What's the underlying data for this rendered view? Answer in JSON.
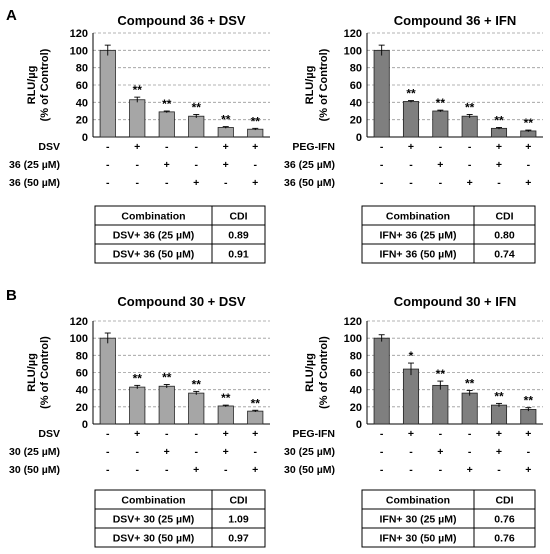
{
  "panel_labels": [
    "A",
    "B"
  ],
  "chart_data": [
    {
      "type": "bar",
      "title": "Compound 36 + DSV",
      "ylabel": "RLU/µg",
      "ylabel2": "(% of Control)",
      "ylim": [
        0,
        120
      ],
      "yticks": [
        "0",
        "20",
        "40",
        "60",
        "80",
        "100",
        "120"
      ],
      "values": [
        100,
        43,
        29,
        24,
        11,
        9
      ],
      "errors": [
        6,
        3,
        1,
        2,
        1,
        1
      ],
      "significance": [
        "",
        "**",
        "**",
        "**",
        "**",
        "**"
      ],
      "bar_color": "#a6a6a6",
      "grid": true,
      "conditions": [
        {
          "label": "DSV",
          "marks": [
            "-",
            "+",
            "-",
            "-",
            "+",
            "+"
          ]
        },
        {
          "label": "36 (25 µM)",
          "marks": [
            "-",
            "-",
            "+",
            "-",
            "+",
            "-"
          ]
        },
        {
          "label": "36 (50 µM)",
          "marks": [
            "-",
            "-",
            "-",
            "+",
            "-",
            "+"
          ]
        }
      ],
      "table": {
        "headers": [
          "Combination",
          "CDI"
        ],
        "rows": [
          [
            "DSV+ 36 (25 µM)",
            "0.89"
          ],
          [
            "DSV+ 36 (50 µM)",
            "0.91"
          ]
        ]
      }
    },
    {
      "type": "bar",
      "title": "Compound 36 + IFN",
      "ylabel": "RLU/µg",
      "ylabel2": "(% of Control)",
      "ylim": [
        0,
        120
      ],
      "yticks": [
        "0",
        "20",
        "40",
        "60",
        "80",
        "100",
        "120"
      ],
      "values": [
        100,
        41,
        30,
        24,
        10,
        7
      ],
      "errors": [
        6,
        1,
        1,
        2,
        1,
        1
      ],
      "significance": [
        "",
        "**",
        "**",
        "**",
        "**",
        "**"
      ],
      "bar_color": "#7f7f7f",
      "grid": true,
      "conditions": [
        {
          "label": "PEG-IFN",
          "marks": [
            "-",
            "+",
            "-",
            "-",
            "+",
            "+"
          ]
        },
        {
          "label": "36 (25 µM)",
          "marks": [
            "-",
            "-",
            "+",
            "-",
            "+",
            "-"
          ]
        },
        {
          "label": "36 (50 µM)",
          "marks": [
            "-",
            "-",
            "-",
            "+",
            "-",
            "+"
          ]
        }
      ],
      "table": {
        "headers": [
          "Combination",
          "CDI"
        ],
        "rows": [
          [
            "IFN+ 36 (25 µM)",
            "0.80"
          ],
          [
            "IFN+ 36 (50 µM)",
            "0.74"
          ]
        ]
      }
    },
    {
      "type": "bar",
      "title": "Compound 30 + DSV",
      "ylabel": "RLU/µg",
      "ylabel2": "(% of Control)",
      "ylim": [
        0,
        120
      ],
      "yticks": [
        "0",
        "20",
        "40",
        "60",
        "80",
        "100",
        "120"
      ],
      "values": [
        100,
        43,
        44,
        36,
        21,
        15
      ],
      "errors": [
        6,
        2,
        2,
        2,
        1,
        1
      ],
      "significance": [
        "",
        "**",
        "**",
        "**",
        "**",
        "**"
      ],
      "bar_color": "#a6a6a6",
      "grid": true,
      "conditions": [
        {
          "label": "DSV",
          "marks": [
            "-",
            "+",
            "-",
            "-",
            "+",
            "+"
          ]
        },
        {
          "label": "30 (25 µM)",
          "marks": [
            "-",
            "-",
            "+",
            "-",
            "+",
            "-"
          ]
        },
        {
          "label": "30 (50 µM)",
          "marks": [
            "-",
            "-",
            "-",
            "+",
            "-",
            "+"
          ]
        }
      ],
      "table": {
        "headers": [
          "Combination",
          "CDI"
        ],
        "rows": [
          [
            "DSV+ 30 (25 µM)",
            "1.09"
          ],
          [
            "DSV+ 30 (50 µM)",
            "0.97"
          ]
        ]
      }
    },
    {
      "type": "bar",
      "title": "Compound 30 + IFN",
      "ylabel": "RLU/µg",
      "ylabel2": "(% of Control)",
      "ylim": [
        0,
        120
      ],
      "yticks": [
        "0",
        "20",
        "40",
        "60",
        "80",
        "100",
        "120"
      ],
      "values": [
        100,
        64,
        45,
        36,
        22,
        17
      ],
      "errors": [
        4,
        7,
        5,
        3,
        2,
        2
      ],
      "significance": [
        "",
        "*",
        "**",
        "**",
        "**",
        "**"
      ],
      "bar_color": "#7f7f7f",
      "grid": true,
      "conditions": [
        {
          "label": "PEG-IFN",
          "marks": [
            "-",
            "+",
            "-",
            "-",
            "+",
            "+"
          ]
        },
        {
          "label": "30 (25 µM)",
          "marks": [
            "-",
            "-",
            "+",
            "-",
            "+",
            "-"
          ]
        },
        {
          "label": "30 (50 µM)",
          "marks": [
            "-",
            "-",
            "-",
            "+",
            "-",
            "+"
          ]
        }
      ],
      "table": {
        "headers": [
          "Combination",
          "CDI"
        ],
        "rows": [
          [
            "IFN+ 30 (25 µM)",
            "0.76"
          ],
          [
            "IFN+ 30 (50 µM)",
            "0.76"
          ]
        ]
      }
    }
  ]
}
